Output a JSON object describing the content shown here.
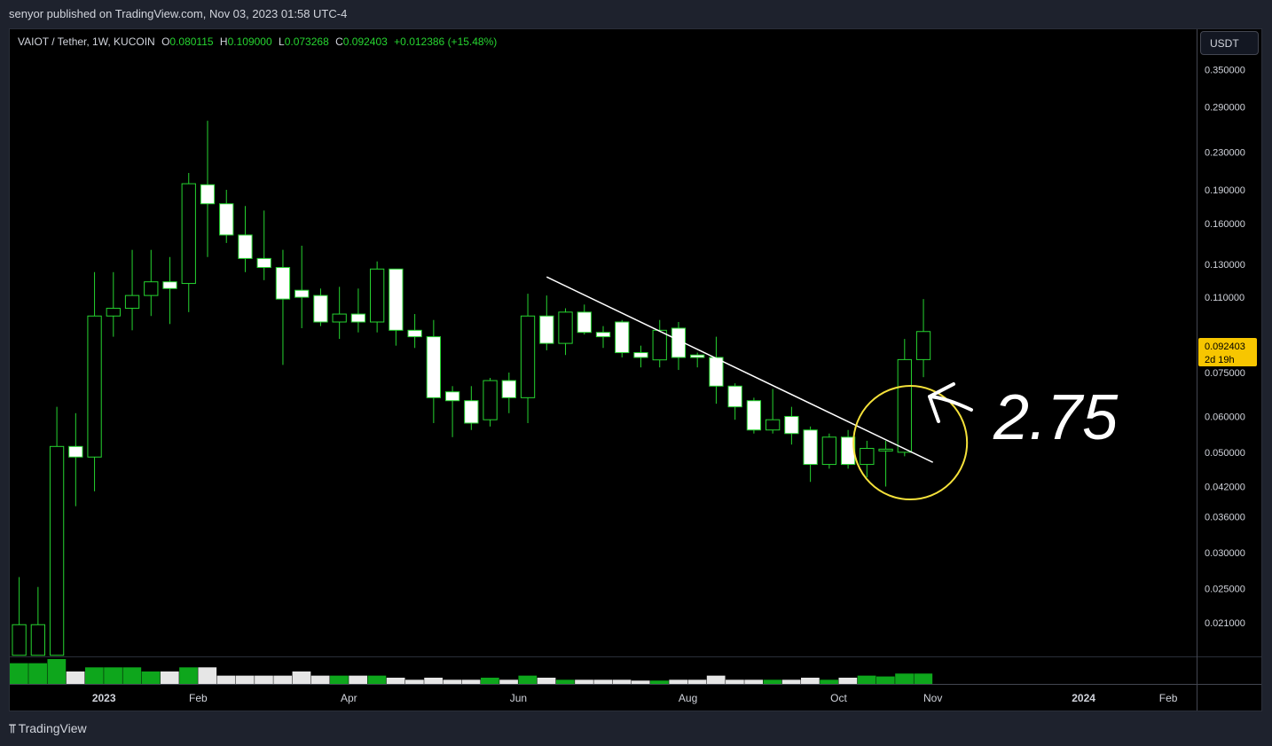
{
  "header": {
    "published": "senyor published on TradingView.com, Nov 03, 2023 01:58 UTC-4"
  },
  "legend": {
    "symbol": "VAIOT / Tether, 1W, KUCOIN",
    "o_label": "O",
    "o": "0.080115",
    "h_label": "H",
    "h": "0.109000",
    "l_label": "L",
    "l": "0.073268",
    "c_label": "C",
    "c": "0.092403",
    "change": "+0.012386 (+15.48%)"
  },
  "currency": "USDT",
  "price_badge": {
    "price": "0.092403",
    "countdown": "2d 19h"
  },
  "annotation": {
    "text": "2.75"
  },
  "footer": {
    "brand": "TradingView"
  },
  "colors": {
    "up": "#26d430",
    "down_fill": "#ffffff",
    "volume_up": "#0ea61c",
    "volume_down": "#e6e6e6",
    "circle": "#f5e13a",
    "trendline": "#ffffff",
    "background": "#000000"
  },
  "chart_data": {
    "type": "candlestick",
    "scale": "log",
    "ylim": [
      0.0177,
      0.43
    ],
    "y_ticks": [
      {
        "label": "0.350000",
        "value": 0.35
      },
      {
        "label": "0.290000",
        "value": 0.29
      },
      {
        "label": "0.230000",
        "value": 0.23
      },
      {
        "label": "0.190000",
        "value": 0.19
      },
      {
        "label": "0.160000",
        "value": 0.16
      },
      {
        "label": "0.130000",
        "value": 0.13
      },
      {
        "label": "0.110000",
        "value": 0.11
      },
      {
        "label": "0.075000",
        "value": 0.075
      },
      {
        "label": "0.060000",
        "value": 0.06
      },
      {
        "label": "0.050000",
        "value": 0.05
      },
      {
        "label": "0.042000",
        "value": 0.042
      },
      {
        "label": "0.036000",
        "value": 0.036
      },
      {
        "label": "0.030000",
        "value": 0.03
      },
      {
        "label": "0.025000",
        "value": 0.025
      },
      {
        "label": "0.021000",
        "value": 0.021
      }
    ],
    "x_ticks": [
      {
        "label": "2023",
        "bold": true,
        "index": 4.5
      },
      {
        "label": "Feb",
        "bold": false,
        "index": 9.5
      },
      {
        "label": "Apr",
        "bold": false,
        "index": 17.5
      },
      {
        "label": "Jun",
        "bold": false,
        "index": 26.5
      },
      {
        "label": "Aug",
        "bold": false,
        "index": 35.5
      },
      {
        "label": "Oct",
        "bold": false,
        "index": 43.5
      },
      {
        "label": "Nov",
        "bold": false,
        "index": 48.5
      },
      {
        "label": "2024",
        "bold": true,
        "index": 56.5
      },
      {
        "label": "Feb",
        "bold": false,
        "index": 61
      }
    ],
    "x_range": [
      -0.5,
      62.5
    ],
    "candles": [
      {
        "o": 0.0178,
        "h": 0.0265,
        "l": 0.0178,
        "c": 0.0208,
        "v": 5
      },
      {
        "o": 0.0178,
        "h": 0.0252,
        "l": 0.0178,
        "c": 0.0208,
        "v": 5
      },
      {
        "o": 0.0178,
        "h": 0.063,
        "l": 0.0178,
        "c": 0.0515,
        "v": 6
      },
      {
        "o": 0.0515,
        "h": 0.061,
        "l": 0.038,
        "c": 0.0488,
        "v": 3
      },
      {
        "o": 0.0488,
        "h": 0.125,
        "l": 0.041,
        "c": 0.1,
        "v": 4
      },
      {
        "o": 0.1,
        "h": 0.125,
        "l": 0.09,
        "c": 0.104,
        "v": 4
      },
      {
        "o": 0.104,
        "h": 0.14,
        "l": 0.093,
        "c": 0.111,
        "v": 4
      },
      {
        "o": 0.111,
        "h": 0.14,
        "l": 0.1,
        "c": 0.119,
        "v": 3
      },
      {
        "o": 0.119,
        "h": 0.135,
        "l": 0.096,
        "c": 0.115,
        "v": 3
      },
      {
        "o": 0.118,
        "h": 0.207,
        "l": 0.102,
        "c": 0.196,
        "v": 4
      },
      {
        "o": 0.195,
        "h": 0.27,
        "l": 0.135,
        "c": 0.177,
        "v": 4
      },
      {
        "o": 0.177,
        "h": 0.19,
        "l": 0.145,
        "c": 0.151,
        "v": 2
      },
      {
        "o": 0.151,
        "h": 0.175,
        "l": 0.125,
        "c": 0.134,
        "v": 2
      },
      {
        "o": 0.134,
        "h": 0.171,
        "l": 0.12,
        "c": 0.128,
        "v": 2
      },
      {
        "o": 0.128,
        "h": 0.14,
        "l": 0.078,
        "c": 0.109,
        "v": 2
      },
      {
        "o": 0.114,
        "h": 0.143,
        "l": 0.094,
        "c": 0.11,
        "v": 3
      },
      {
        "o": 0.111,
        "h": 0.115,
        "l": 0.095,
        "c": 0.097,
        "v": 2
      },
      {
        "o": 0.097,
        "h": 0.116,
        "l": 0.089,
        "c": 0.101,
        "v": 2
      },
      {
        "o": 0.101,
        "h": 0.115,
        "l": 0.092,
        "c": 0.097,
        "v": 2
      },
      {
        "o": 0.097,
        "h": 0.132,
        "l": 0.092,
        "c": 0.127,
        "v": 2
      },
      {
        "o": 0.127,
        "h": 0.127,
        "l": 0.086,
        "c": 0.093,
        "v": 1.5
      },
      {
        "o": 0.093,
        "h": 0.101,
        "l": 0.085,
        "c": 0.09,
        "v": 1
      },
      {
        "o": 0.09,
        "h": 0.098,
        "l": 0.058,
        "c": 0.066,
        "v": 1.5
      },
      {
        "o": 0.068,
        "h": 0.07,
        "l": 0.054,
        "c": 0.065,
        "v": 1
      },
      {
        "o": 0.065,
        "h": 0.07,
        "l": 0.056,
        "c": 0.058,
        "v": 1
      },
      {
        "o": 0.059,
        "h": 0.073,
        "l": 0.057,
        "c": 0.072,
        "v": 1.5
      },
      {
        "o": 0.072,
        "h": 0.075,
        "l": 0.061,
        "c": 0.066,
        "v": 1
      },
      {
        "o": 0.066,
        "h": 0.112,
        "l": 0.058,
        "c": 0.1,
        "v": 2
      },
      {
        "o": 0.1,
        "h": 0.111,
        "l": 0.084,
        "c": 0.087,
        "v": 1.5
      },
      {
        "o": 0.087,
        "h": 0.104,
        "l": 0.082,
        "c": 0.102,
        "v": 1
      },
      {
        "o": 0.102,
        "h": 0.106,
        "l": 0.091,
        "c": 0.092,
        "v": 1
      },
      {
        "o": 0.092,
        "h": 0.095,
        "l": 0.085,
        "c": 0.09,
        "v": 1
      },
      {
        "o": 0.097,
        "h": 0.098,
        "l": 0.081,
        "c": 0.083,
        "v": 1
      },
      {
        "o": 0.083,
        "h": 0.086,
        "l": 0.077,
        "c": 0.081,
        "v": 0.8
      },
      {
        "o": 0.08,
        "h": 0.098,
        "l": 0.077,
        "c": 0.093,
        "v": 0.8
      },
      {
        "o": 0.094,
        "h": 0.097,
        "l": 0.076,
        "c": 0.081,
        "v": 1
      },
      {
        "o": 0.082,
        "h": 0.083,
        "l": 0.077,
        "c": 0.081,
        "v": 1
      },
      {
        "o": 0.081,
        "h": 0.09,
        "l": 0.064,
        "c": 0.07,
        "v": 2
      },
      {
        "o": 0.07,
        "h": 0.071,
        "l": 0.059,
        "c": 0.063,
        "v": 1
      },
      {
        "o": 0.065,
        "h": 0.066,
        "l": 0.055,
        "c": 0.056,
        "v": 1
      },
      {
        "o": 0.056,
        "h": 0.069,
        "l": 0.055,
        "c": 0.059,
        "v": 1
      },
      {
        "o": 0.06,
        "h": 0.063,
        "l": 0.052,
        "c": 0.055,
        "v": 1
      },
      {
        "o": 0.056,
        "h": 0.057,
        "l": 0.043,
        "c": 0.047,
        "v": 1.5
      },
      {
        "o": 0.047,
        "h": 0.055,
        "l": 0.046,
        "c": 0.054,
        "v": 1
      },
      {
        "o": 0.054,
        "h": 0.056,
        "l": 0.046,
        "c": 0.047,
        "v": 1.5
      },
      {
        "o": 0.047,
        "h": 0.053,
        "l": 0.044,
        "c": 0.051,
        "v": 2
      },
      {
        "o": 0.0505,
        "h": 0.053,
        "l": 0.042,
        "c": 0.0508,
        "v": 1.8
      },
      {
        "o": 0.05,
        "h": 0.089,
        "l": 0.049,
        "c": 0.080115,
        "v": 2.5
      },
      {
        "o": 0.080115,
        "h": 0.109,
        "l": 0.073268,
        "c": 0.092403,
        "v": 2.5
      }
    ],
    "trendline": [
      {
        "x": 28,
        "y": 0.122
      },
      {
        "x": 48.5,
        "y": 0.0475
      }
    ],
    "highlight_circle": {
      "x": 47.3,
      "y": 0.0525
    }
  }
}
